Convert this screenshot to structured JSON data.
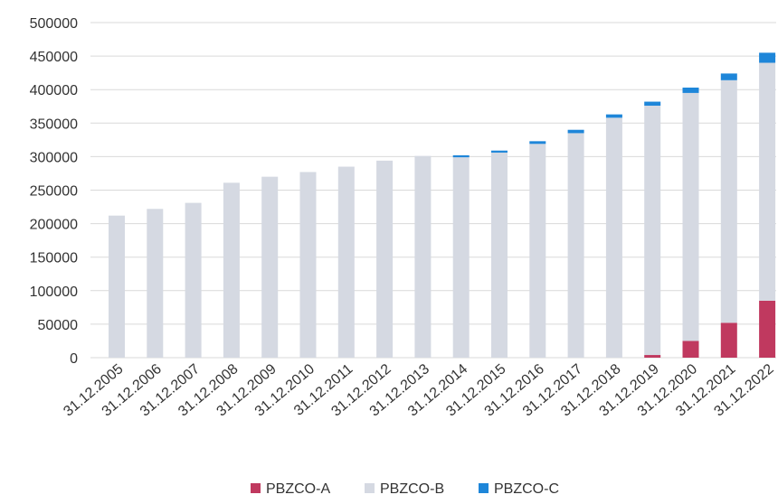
{
  "chart_data": {
    "type": "bar",
    "stacked": true,
    "categories": [
      "31.12.2005",
      "31.12.2006",
      "31.12.2007",
      "31.12.2008",
      "31.12.2009",
      "31.12.2010",
      "31.12.2011",
      "31.12.2012",
      "31.12.2013",
      "31.12.2014",
      "31.12.2015",
      "31.12.2016",
      "31.12.2017",
      "31.12.2018",
      "31.12.2019",
      "31.12.2020",
      "31.12.2021",
      "31.12.2022"
    ],
    "series": [
      {
        "name": "PBZCO-A",
        "color": "#c0395f",
        "values": [
          0,
          0,
          0,
          0,
          0,
          0,
          0,
          0,
          0,
          0,
          0,
          0,
          0,
          0,
          4000,
          25000,
          52000,
          85000
        ]
      },
      {
        "name": "PBZCO-B",
        "color": "#d5d9e2",
        "values": [
          212000,
          222000,
          231000,
          261000,
          270000,
          277000,
          285000,
          294000,
          301000,
          299000,
          306000,
          319000,
          335000,
          358000,
          372000,
          370000,
          362000,
          355000
        ]
      },
      {
        "name": "PBZCO-C",
        "color": "#1e86d9",
        "values": [
          0,
          0,
          0,
          0,
          0,
          0,
          0,
          0,
          0,
          3000,
          3000,
          4000,
          5000,
          5000,
          6000,
          8000,
          10000,
          15000
        ]
      }
    ],
    "yticks": [
      "0",
      "50000",
      "100000",
      "150000",
      "200000",
      "250000",
      "300000",
      "350000",
      "400000",
      "450000",
      "500000"
    ],
    "ylim": [
      0,
      500000
    ],
    "grid": true,
    "legend_position": "bottom"
  }
}
